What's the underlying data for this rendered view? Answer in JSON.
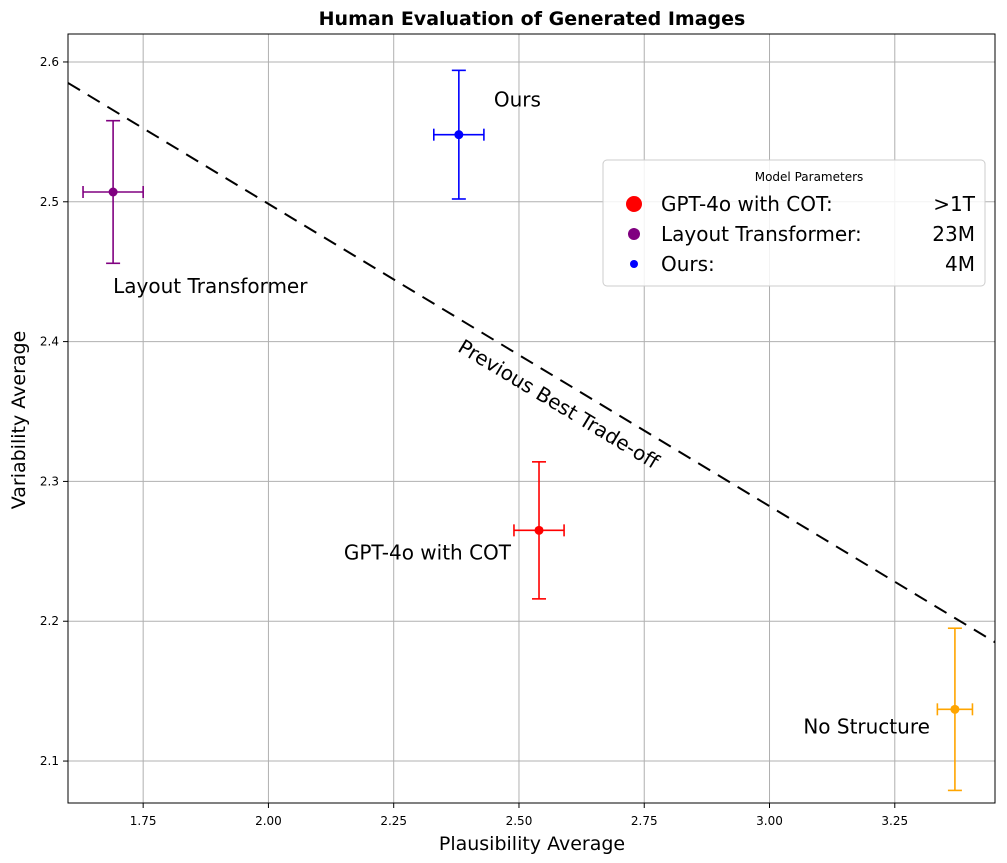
{
  "chart_data": {
    "type": "scatter",
    "title": "Human Evaluation of Generated Images",
    "xlabel": "Plausibility Average",
    "ylabel": "Variability Average",
    "xlim": [
      1.6,
      3.45
    ],
    "ylim": [
      2.07,
      2.62
    ],
    "x_ticks": [
      1.75,
      2.0,
      2.25,
      2.5,
      2.75,
      3.0,
      3.25
    ],
    "x_tick_labels": [
      "1.75",
      "2.00",
      "2.25",
      "2.50",
      "2.75",
      "3.00",
      "3.25"
    ],
    "y_ticks": [
      2.1,
      2.2,
      2.3,
      2.4,
      2.5,
      2.6
    ],
    "y_tick_labels": [
      "2.1",
      "2.2",
      "2.3",
      "2.4",
      "2.5",
      "2.6"
    ],
    "grid": true,
    "points": [
      {
        "label": "GPT-4o with COT",
        "x": 2.54,
        "y": 2.265,
        "xerr": 0.05,
        "yerr": 0.049,
        "color": "#ff0000"
      },
      {
        "label": "Layout Transformer",
        "x": 1.69,
        "y": 2.507,
        "xerr": 0.06,
        "yerr": 0.051,
        "color": "#800080"
      },
      {
        "label": "Ours",
        "x": 2.38,
        "y": 2.548,
        "xerr": 0.05,
        "yerr": 0.046,
        "color": "#0000ff"
      },
      {
        "label": "No Structure",
        "x": 3.37,
        "y": 2.137,
        "xerr": 0.035,
        "yerr": 0.058,
        "color": "#ffa500"
      }
    ],
    "trend_line": {
      "label": "Previous Best Trade-off",
      "x1": 1.6,
      "y1": 2.585,
      "x2": 3.45,
      "y2": 2.185,
      "color": "#000000",
      "style": "dashed"
    },
    "legend": {
      "title": "Model Parameters",
      "placement": "upper-right",
      "entries": [
        {
          "name": "GPT-4o with COT:",
          "value": ">1T",
          "color": "#ff0000",
          "marker": "large"
        },
        {
          "name": "Layout Transformer:",
          "value": "23M",
          "color": "#800080",
          "marker": "medium"
        },
        {
          "name": "Ours:",
          "value": "4M",
          "color": "#0000ff",
          "marker": "small"
        }
      ]
    }
  }
}
